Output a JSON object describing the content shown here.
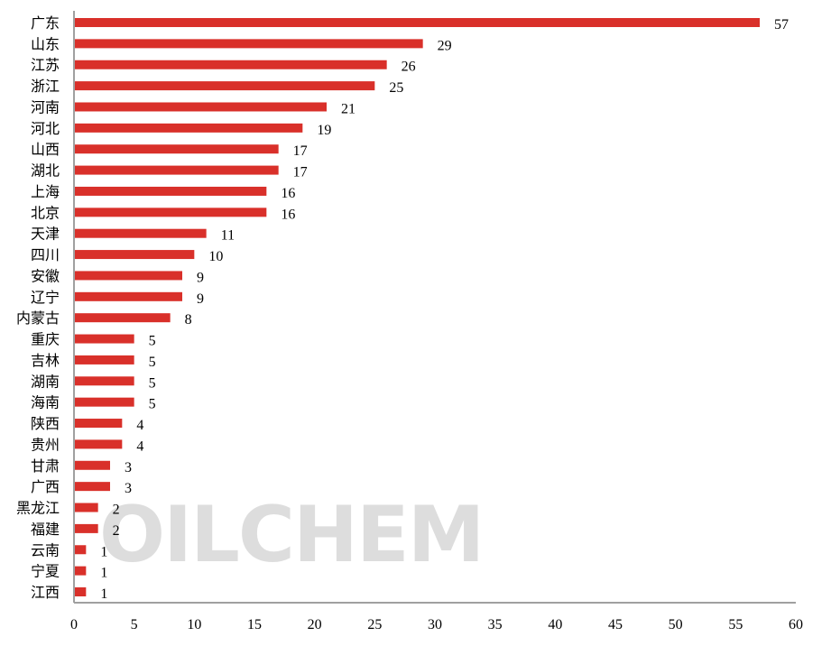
{
  "chart_data": {
    "type": "bar",
    "orientation": "horizontal",
    "categories": [
      "广东",
      "山东",
      "江苏",
      "浙江",
      "河南",
      "河北",
      "山西",
      "湖北",
      "上海",
      "北京",
      "天津",
      "四川",
      "安徽",
      "辽宁",
      "内蒙古",
      "重庆",
      "吉林",
      "湖南",
      "海南",
      "陕西",
      "贵州",
      "甘肃",
      "广西",
      "黑龙江",
      "福建",
      "云南",
      "宁夏",
      "江西"
    ],
    "values": [
      57,
      29,
      26,
      25,
      21,
      19,
      17,
      17,
      16,
      16,
      11,
      10,
      9,
      9,
      8,
      5,
      5,
      5,
      5,
      4,
      4,
      3,
      3,
      2,
      2,
      1,
      1,
      1
    ],
    "xlim": [
      0,
      60
    ],
    "xticks": [
      0,
      5,
      10,
      15,
      20,
      25,
      30,
      35,
      40,
      45,
      50,
      55,
      60
    ],
    "title": "",
    "xlabel": "",
    "ylabel": "",
    "grid": false,
    "data_labels": true,
    "bar_color": "#d9302a",
    "watermark": "OILCHEM"
  }
}
